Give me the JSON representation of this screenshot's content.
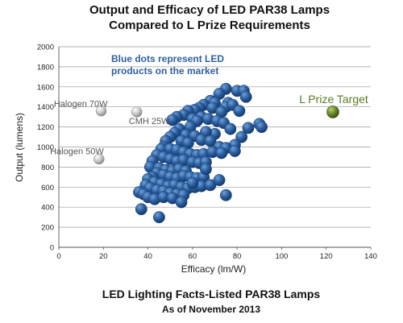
{
  "chart_data": {
    "type": "scatter",
    "title": "Output and Efficacy of LED PAR38 Lamps",
    "subtitle": "Compared to L Prize Requirements",
    "caption": "LED Lighting Facts-Listed PAR38 Lamps",
    "caption_sub": "As of November 2013",
    "xlabel": "Efficacy (lm/W)",
    "ylabel": "Output (lumens)",
    "xlim": [
      0,
      140
    ],
    "ylim": [
      0,
      2000
    ],
    "xticks": [
      "0",
      "20",
      "40",
      "60",
      "80",
      "100",
      "120",
      "140"
    ],
    "yticks": [
      "0",
      "200",
      "400",
      "600",
      "800",
      "1000",
      "1200",
      "1400",
      "1600",
      "1800",
      "2000"
    ],
    "grid": true,
    "annotation": [
      "Blue dots represent LED",
      "products on the market"
    ],
    "colors": {
      "led": "#2a5d9e",
      "led_label": "#2f5fa0",
      "reference": "#b0b0b0",
      "target": "#6a8a2c",
      "target_label": "#5a7a24"
    },
    "references": [
      {
        "label": "Halogen 70W",
        "x": 19,
        "y": 1360
      },
      {
        "label": "CMH 25W",
        "x": 35,
        "y": 1350
      },
      {
        "label": "Halogen 50W",
        "x": 18,
        "y": 880
      }
    ],
    "target": {
      "label": "L Prize Target",
      "x": 123,
      "y": 1350
    },
    "led_points": [
      [
        75,
        1580
      ],
      [
        80,
        1560
      ],
      [
        83,
        1560
      ],
      [
        84,
        1500
      ],
      [
        72,
        1530
      ],
      [
        68,
        1460
      ],
      [
        70,
        1440
      ],
      [
        76,
        1440
      ],
      [
        65,
        1420
      ],
      [
        63,
        1390
      ],
      [
        61,
        1370
      ],
      [
        58,
        1360
      ],
      [
        75,
        1400
      ],
      [
        78,
        1420
      ],
      [
        69,
        1390
      ],
      [
        73,
        1350
      ],
      [
        81,
        1360
      ],
      [
        90,
        1230
      ],
      [
        91,
        1200
      ],
      [
        56,
        1320
      ],
      [
        53,
        1300
      ],
      [
        51,
        1270
      ],
      [
        60,
        1280
      ],
      [
        64,
        1300
      ],
      [
        67,
        1280
      ],
      [
        71,
        1260
      ],
      [
        74,
        1240
      ],
      [
        62,
        1260
      ],
      [
        85,
        1190
      ],
      [
        82,
        1100
      ],
      [
        77,
        1180
      ],
      [
        79,
        1020
      ],
      [
        70,
        1130
      ],
      [
        66,
        1150
      ],
      [
        59,
        1200
      ],
      [
        54,
        1180
      ],
      [
        52,
        1140
      ],
      [
        57,
        1120
      ],
      [
        61,
        1110
      ],
      [
        64,
        1070
      ],
      [
        68,
        1060
      ],
      [
        72,
        1000
      ],
      [
        75,
        990
      ],
      [
        79,
        960
      ],
      [
        55,
        1060
      ],
      [
        58,
        1040
      ],
      [
        50,
        1100
      ],
      [
        48,
        1060
      ],
      [
        47,
        1000
      ],
      [
        46,
        980
      ],
      [
        50,
        980
      ],
      [
        53,
        970
      ],
      [
        56,
        950
      ],
      [
        59,
        930
      ],
      [
        62,
        920
      ],
      [
        65,
        930
      ],
      [
        69,
        950
      ],
      [
        73,
        940
      ],
      [
        44,
        920
      ],
      [
        47,
        900
      ],
      [
        50,
        880
      ],
      [
        53,
        860
      ],
      [
        56,
        870
      ],
      [
        60,
        850
      ],
      [
        63,
        840
      ],
      [
        66,
        850
      ],
      [
        42,
        860
      ],
      [
        41,
        800
      ],
      [
        45,
        790
      ],
      [
        48,
        770
      ],
      [
        51,
        760
      ],
      [
        54,
        780
      ],
      [
        57,
        760
      ],
      [
        44,
        740
      ],
      [
        47,
        720
      ],
      [
        50,
        700
      ],
      [
        53,
        690
      ],
      [
        56,
        710
      ],
      [
        59,
        700
      ],
      [
        62,
        690
      ],
      [
        65,
        700
      ],
      [
        42,
        700
      ],
      [
        40,
        680
      ],
      [
        43,
        650
      ],
      [
        46,
        630
      ],
      [
        49,
        610
      ],
      [
        52,
        620
      ],
      [
        55,
        600
      ],
      [
        58,
        590
      ],
      [
        61,
        600
      ],
      [
        64,
        610
      ],
      [
        68,
        620
      ],
      [
        39,
        620
      ],
      [
        41,
        590
      ],
      [
        44,
        570
      ],
      [
        47,
        560
      ],
      [
        50,
        540
      ],
      [
        53,
        530
      ],
      [
        56,
        520
      ],
      [
        36,
        550
      ],
      [
        38,
        530
      ],
      [
        40,
        500
      ],
      [
        43,
        480
      ],
      [
        47,
        500
      ],
      [
        51,
        490
      ],
      [
        55,
        450
      ],
      [
        37,
        380
      ],
      [
        45,
        300
      ],
      [
        75,
        520
      ],
      [
        60,
        640
      ],
      [
        72,
        670
      ],
      [
        66,
        780
      ]
    ]
  }
}
